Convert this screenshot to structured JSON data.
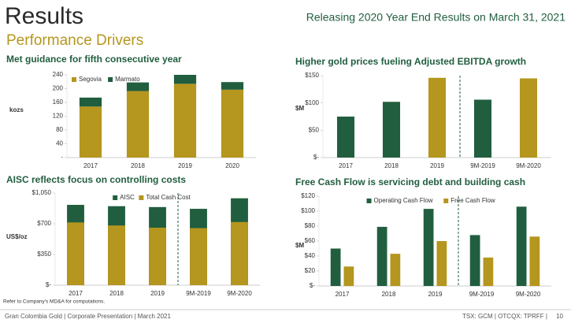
{
  "header": {
    "title": "Results",
    "subtitle": "Performance Drivers",
    "announcement": "Releasing 2020 Year End Results on March 31, 2021"
  },
  "chart_data": [
    {
      "type": "bar",
      "mode": "stacked",
      "title": "Met guidance for fifth consecutive year",
      "y_label": "kozs",
      "categories": [
        "2017",
        "2018",
        "2019",
        "2020"
      ],
      "series": [
        {
          "name": "Segovia",
          "color": "#b5961e",
          "values": [
            148,
            193,
            214,
            197
          ]
        },
        {
          "name": "Marmato",
          "color": "#215e3f",
          "values": [
            26,
            25,
            26,
            22
          ]
        }
      ],
      "ylim": [
        0,
        240
      ],
      "yticks": [
        {
          "value": 0,
          "label": "-"
        },
        40,
        80,
        120,
        160,
        200,
        240
      ],
      "legend": "upper left"
    },
    {
      "type": "bar",
      "mode": "single",
      "title": "Higher gold prices fueling Adjusted EBITDA growth",
      "y_label": "$M",
      "categories": [
        "2017",
        "2018",
        "2019",
        "9M-2019",
        "9M-2020"
      ],
      "values": [
        75,
        102,
        146,
        106,
        145
      ],
      "colors": [
        "#215e3f",
        "#215e3f",
        "#b5961e",
        "#215e3f",
        "#b5961e"
      ],
      "ylim": [
        0,
        150
      ],
      "yticks": [
        {
          "value": 0,
          "label": "$-"
        },
        {
          "value": 50,
          "label": "$50"
        },
        {
          "value": 100,
          "label": "$100"
        },
        {
          "value": 150,
          "label": "$150"
        }
      ],
      "divider": true
    },
    {
      "type": "bar",
      "mode": "overlay",
      "title": "AISC reflects focus on controlling costs",
      "y_label": "US$/oz",
      "categories": [
        "2017",
        "2018",
        "2019",
        "9M-2019",
        "9M-2020"
      ],
      "series": [
        {
          "name": "AISC",
          "color": "#215e3f",
          "values": [
            915,
            900,
            890,
            870,
            990
          ]
        },
        {
          "name": "Total Cash Cost",
          "color": "#b5961e",
          "values": [
            715,
            680,
            655,
            650,
            720
          ]
        }
      ],
      "ylim": [
        0,
        1050
      ],
      "yticks": [
        {
          "value": 0,
          "label": "$-"
        },
        {
          "value": 350,
          "label": "$350"
        },
        {
          "value": 700,
          "label": "$700"
        },
        {
          "value": 1050,
          "label": "$1,050"
        }
      ],
      "legend": "upper center",
      "divider": true
    },
    {
      "type": "bar",
      "mode": "grouped",
      "title": "Free Cash Flow is servicing debt and building cash",
      "y_label": "$M",
      "categories": [
        "2017",
        "2018",
        "2019",
        "9M-2019",
        "9M-2020"
      ],
      "series": [
        {
          "name": "Operating Cash Flow",
          "color": "#215e3f",
          "values": [
            50,
            79,
            103,
            68,
            106
          ]
        },
        {
          "name": "Free Cash Flow",
          "color": "#b5961e",
          "values": [
            26,
            43,
            60,
            38,
            66
          ]
        }
      ],
      "ylim": [
        0,
        120
      ],
      "yticks": [
        {
          "value": 0,
          "label": "$-"
        },
        {
          "value": 20,
          "label": "$20"
        },
        {
          "value": 40,
          "label": "$40"
        },
        {
          "value": 60,
          "label": "$60"
        },
        {
          "value": 80,
          "label": "$80"
        },
        {
          "value": 100,
          "label": "$100"
        },
        {
          "value": 120,
          "label": "$120"
        }
      ],
      "legend": "upper center",
      "divider": true
    }
  ],
  "footnote": "Refer to Company's MD&A for computations.",
  "footer": {
    "left": "Gran Colombia Gold | Corporate Presentation | March 2021",
    "right": "TSX: GCM | OTCQX: TPRFF |",
    "page": "10"
  }
}
